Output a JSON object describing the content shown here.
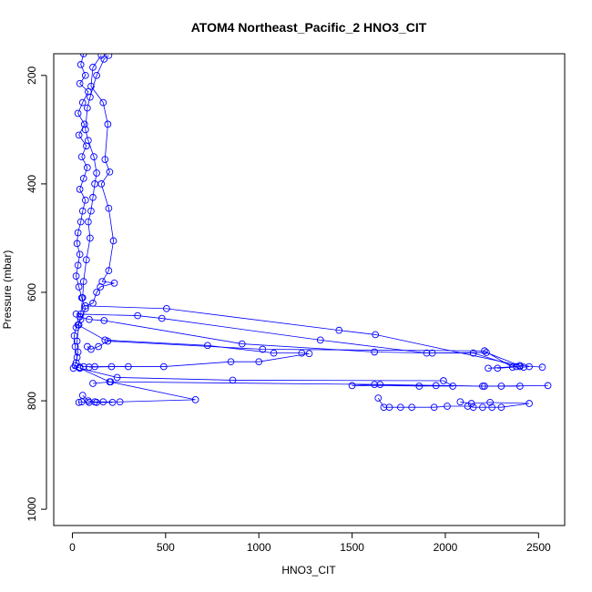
{
  "chart_data": {
    "type": "scatter",
    "title": "ATOM4 Northeast_Pacific_2 HNO3_CIT",
    "xlabel": "HNO3_CIT",
    "ylabel": "Pressure (mbar)",
    "xlim": [
      -100,
      2640
    ],
    "ylim": [
      1030,
      160
    ],
    "y_reversed": true,
    "x_ticks": [
      0,
      500,
      1000,
      1500,
      2000,
      2500
    ],
    "y_ticks": [
      200,
      400,
      600,
      800,
      1000
    ],
    "grid": false,
    "legend": "none",
    "marker": "open-circle",
    "connected": true,
    "color": "#0000ff",
    "series": [
      {
        "points": [
          [
            60,
            160
          ],
          [
            45,
            180
          ],
          [
            70,
            200
          ],
          [
            40,
            215
          ],
          [
            85,
            230
          ],
          [
            55,
            250
          ],
          [
            30,
            270
          ],
          [
            65,
            290
          ],
          [
            35,
            310
          ],
          [
            75,
            330
          ],
          [
            50,
            350
          ],
          [
            80,
            370
          ],
          [
            60,
            390
          ],
          [
            40,
            410
          ],
          [
            70,
            430
          ],
          [
            55,
            450
          ],
          [
            45,
            470
          ],
          [
            30,
            490
          ],
          [
            25,
            510
          ],
          [
            40,
            530
          ],
          [
            30,
            550
          ],
          [
            20,
            570
          ],
          [
            35,
            590
          ],
          [
            50,
            610
          ],
          [
            70,
            630
          ],
          [
            45,
            650
          ],
          [
            20,
            665
          ],
          [
            10,
            680
          ],
          [
            15,
            700
          ],
          [
            25,
            720
          ],
          [
            15,
            735
          ],
          [
            5,
            740
          ],
          [
            40,
            738
          ]
        ]
      },
      {
        "points": [
          [
            195,
            163
          ],
          [
            170,
            170
          ],
          [
            130,
            200
          ],
          [
            95,
            240
          ],
          [
            80,
            260
          ],
          [
            70,
            300
          ],
          [
            85,
            320
          ],
          [
            115,
            350
          ],
          [
            130,
            380
          ],
          [
            120,
            400
          ],
          [
            110,
            425
          ],
          [
            100,
            450
          ],
          [
            85,
            470
          ],
          [
            95,
            500
          ],
          [
            75,
            540
          ],
          [
            60,
            580
          ],
          [
            55,
            610
          ],
          [
            45,
            640
          ],
          [
            35,
            660
          ],
          [
            25,
            690
          ],
          [
            30,
            710
          ],
          [
            20,
            730
          ],
          [
            60,
            737
          ],
          [
            120,
            737
          ],
          [
            300,
            737
          ]
        ]
      },
      {
        "points": [
          [
            155,
            163
          ],
          [
            110,
            185
          ],
          [
            100,
            220
          ],
          [
            165,
            250
          ],
          [
            190,
            290
          ],
          [
            175,
            355
          ],
          [
            200,
            378
          ],
          [
            155,
            400
          ],
          [
            195,
            445
          ],
          [
            220,
            505
          ],
          [
            195,
            560
          ],
          [
            160,
            580
          ],
          [
            225,
            583
          ],
          [
            150,
            590
          ],
          [
            130,
            600
          ],
          [
            110,
            620
          ],
          [
            70,
            625
          ],
          [
            505,
            630
          ],
          [
            1430,
            670
          ],
          [
            1625,
            678
          ],
          [
            2400,
            735
          ],
          [
            2520,
            738
          ]
        ]
      },
      {
        "points": [
          [
            20,
            640
          ],
          [
            350,
            643
          ],
          [
            480,
            648
          ],
          [
            1330,
            688
          ],
          [
            1900,
            712
          ],
          [
            2150,
            712
          ],
          [
            2380,
            737
          ],
          [
            2230,
            740
          ],
          [
            2400,
            737
          ]
        ]
      },
      {
        "points": [
          [
            40,
            645
          ],
          [
            90,
            650
          ],
          [
            170,
            652
          ],
          [
            910,
            695
          ],
          [
            1620,
            710
          ],
          [
            1930,
            712
          ],
          [
            2220,
            711
          ],
          [
            2420,
            738
          ],
          [
            2450,
            737
          ]
        ]
      },
      {
        "points": [
          [
            30,
            660
          ],
          [
            175,
            688
          ],
          [
            725,
            698
          ],
          [
            1080,
            712
          ],
          [
            1230,
            712
          ],
          [
            1270,
            713
          ],
          [
            1000,
            728
          ],
          [
            850,
            728
          ],
          [
            490,
            737
          ],
          [
            210,
            737
          ],
          [
            90,
            738
          ]
        ]
      },
      {
        "points": [
          [
            80,
            700
          ],
          [
            100,
            705
          ],
          [
            140,
            700
          ],
          [
            190,
            690
          ],
          [
            1020,
            705
          ],
          [
            2210,
            708
          ],
          [
            2360,
            738
          ],
          [
            2280,
            740
          ]
        ]
      },
      {
        "points": [
          [
            40,
            740
          ],
          [
            240,
            757
          ],
          [
            860,
            762
          ],
          [
            1990,
            763
          ],
          [
            2040,
            773
          ],
          [
            1500,
            772
          ],
          [
            1620,
            770
          ],
          [
            2200,
            773
          ],
          [
            2550,
            772
          ],
          [
            2300,
            773
          ]
        ]
      },
      {
        "points": [
          [
            110,
            768
          ],
          [
            205,
            765
          ],
          [
            1650,
            770
          ],
          [
            1860,
            773
          ],
          [
            1950,
            772
          ],
          [
            2210,
            773
          ],
          [
            2400,
            773
          ]
        ]
      },
      {
        "points": [
          [
            55,
            790
          ],
          [
            85,
            800
          ],
          [
            120,
            802
          ],
          [
            165,
            802
          ],
          [
            255,
            802
          ],
          [
            660,
            798
          ],
          [
            200,
            765
          ],
          [
            40,
            740
          ]
        ]
      },
      {
        "points": [
          [
            35,
            803
          ],
          [
            50,
            802
          ],
          [
            90,
            803
          ],
          [
            130,
            803
          ],
          [
            215,
            803
          ]
        ]
      },
      {
        "points": [
          [
            1640,
            795
          ],
          [
            1670,
            812
          ],
          [
            1700,
            812
          ],
          [
            1760,
            812
          ],
          [
            1820,
            812
          ],
          [
            1940,
            812
          ],
          [
            2010,
            810
          ],
          [
            2120,
            810
          ],
          [
            2150,
            812
          ],
          [
            2200,
            812
          ],
          [
            2250,
            812
          ],
          [
            2300,
            812
          ],
          [
            2450,
            805
          ],
          [
            2240,
            803
          ],
          [
            2140,
            805
          ],
          [
            2080,
            802
          ]
        ]
      }
    ]
  }
}
